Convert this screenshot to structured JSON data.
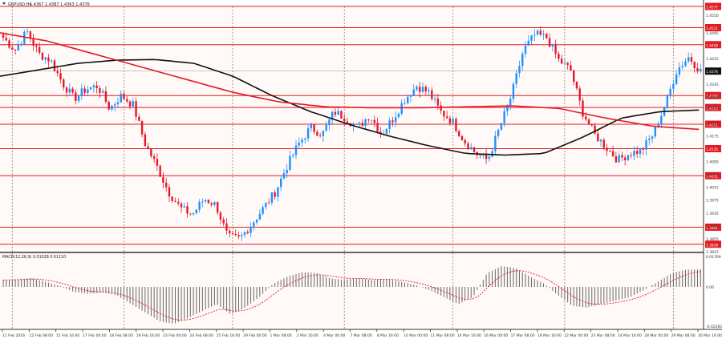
{
  "header": {
    "symbol": "GBPUSD,H4",
    "ohlc": "1.4367 1.4387 1.4363 1.4376"
  },
  "colors": {
    "background": "#fffaf7",
    "bull": "#1e90ff",
    "bear": "#e3192b",
    "sma_slow": "#111111",
    "sma_fast": "#e3192b",
    "level": "#e31b23",
    "macd_hist": "#666666",
    "macd_signal": "#e3192b",
    "grid": "#808080"
  },
  "chart_data": [
    {
      "type": "candlestick",
      "name": "GBPUSD,H4",
      "ylim": [
        1.3815,
        1.4577
      ],
      "price_ticks": [
        "1.4577",
        "1.4550",
        "1.4495",
        "1.4458",
        "1.4415",
        "1.4376",
        "1.4335",
        "1.4295",
        "1.4265",
        "1.4215",
        "1.4175",
        "1.4135",
        "1.4095",
        "1.4055",
        "1.4015",
        "1.3975",
        "1.3935",
        "1.3895",
        "1.3855",
        "1.3815"
      ],
      "current_price": "1.4376",
      "level_tags": [
        {
          "label": "1.4577",
          "value": 1.4577
        },
        {
          "label": "1.4511",
          "value": 1.4511
        },
        {
          "label": "1.4458",
          "value": 1.4458
        },
        {
          "label": "1.4300",
          "value": 1.43
        },
        {
          "label": "1.4263",
          "value": 1.4263
        },
        {
          "label": "1.4211",
          "value": 1.4211
        },
        {
          "label": "1.4135",
          "value": 1.4135
        },
        {
          "label": "1.4051",
          "value": 1.4051
        },
        {
          "label": "1.3891",
          "value": 1.3891
        },
        {
          "label": "1.3838",
          "value": 1.3838
        }
      ],
      "key_closes": [
        1.448,
        1.444,
        1.45,
        1.443,
        1.441,
        1.434,
        1.429,
        1.432,
        1.433,
        1.426,
        1.43,
        1.427,
        1.415,
        1.408,
        1.4,
        1.395,
        1.393,
        1.398,
        1.396,
        1.386,
        1.3855,
        1.39,
        1.395,
        1.4,
        1.408,
        1.415,
        1.42,
        1.418,
        1.425,
        1.423,
        1.42,
        1.424,
        1.418,
        1.423,
        1.429,
        1.433,
        1.431,
        1.425,
        1.422,
        1.416,
        1.412,
        1.41,
        1.42,
        1.43,
        1.444,
        1.449,
        1.448,
        1.441,
        1.438,
        1.425,
        1.418,
        1.414,
        1.41,
        1.412,
        1.413,
        1.418,
        1.427,
        1.438,
        1.442,
        1.4376
      ],
      "sma_slow_points": [
        1.436,
        1.438,
        1.44,
        1.441,
        1.4412,
        1.44,
        1.436,
        1.43,
        1.425,
        1.421,
        1.4175,
        1.4145,
        1.412,
        1.4115,
        1.412,
        1.417,
        1.423,
        1.425,
        1.4255
      ],
      "sma_fast_points": [
        1.4495,
        1.447,
        1.443,
        1.439,
        1.435,
        1.431,
        1.428,
        1.4265,
        1.4262,
        1.4262,
        1.4265,
        1.4268,
        1.426,
        1.423,
        1.4205,
        1.4195
      ],
      "x_tick_labels": [
        "11 Feb 2016",
        "12 Feb 08:00",
        "15 Feb 16:00",
        "17 Feb 00:00",
        "18 Feb 08:00",
        "19 Feb 16:00",
        "23 Feb 00:00",
        "24 Feb 08:00",
        "25 Feb 16:00",
        "29 Feb 00:00",
        "1 Mar 08:00",
        "2 Mar 16:00",
        "4 Mar 00:00",
        "7 Mar 08:00",
        "8 Mar 16:00",
        "10 Mar 00:00",
        "11 Mar 08:00",
        "14 Mar 16:00",
        "16 Mar 00:00",
        "17 Mar 08:00",
        "18 Mar 16:00",
        "22 Mar 00:00",
        "23 Mar 08:00",
        "24 Mar 16:00",
        "28 Mar 00:00",
        "29 Mar 08:00",
        "30 Mar 16:00"
      ],
      "grid": "vertical dotted"
    },
    {
      "type": "bar",
      "name": "MACD(12,26,9) 0.01028 0.01110",
      "ylim": [
        -0.02282,
        0.01769
      ],
      "ticks": [
        "0.01769",
        "0.00",
        "-0.02282"
      ],
      "hist_key_values": [
        0.004,
        0.0045,
        0.005,
        0.003,
        0.0005,
        -0.003,
        -0.004,
        -0.003,
        -0.005,
        -0.01,
        -0.015,
        -0.02,
        -0.0215,
        -0.018,
        -0.014,
        -0.01,
        -0.016,
        -0.012,
        -0.006,
        0.002,
        0.006,
        0.0085,
        0.008,
        0.005,
        0.004,
        0.005,
        0.004,
        0.0045,
        0.003,
        0.001,
        -0.002,
        -0.006,
        -0.01,
        -0.006,
        0.008,
        0.012,
        0.011,
        0.006,
        0.002,
        -0.005,
        -0.011,
        -0.012,
        -0.01,
        -0.008,
        -0.006,
        -0.002,
        0.003,
        0.008,
        0.01,
        0.0102
      ]
    }
  ]
}
